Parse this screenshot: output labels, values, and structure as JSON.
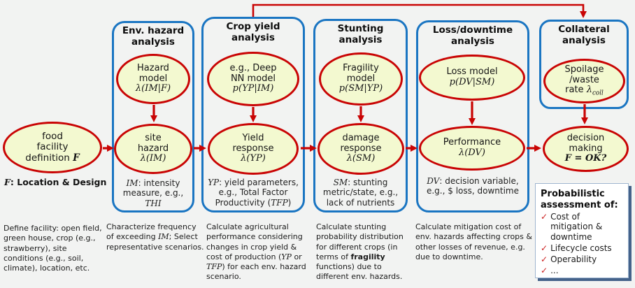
{
  "theme": {
    "background": "#f2f3f2",
    "box_border_blue": "#1a75c2",
    "arrow_red": "#c90404",
    "ellipse_fill": "#f3f9d0",
    "ellipse_border_red": "#c90404",
    "assessment_box_border": "#9fb6d0",
    "assessment_box_shadow": "#44628a",
    "check_red": "#cc2020",
    "text": "#111111"
  },
  "source": {
    "node_lines": [
      [
        {
          "t": "food"
        }
      ],
      [
        {
          "t": "facility"
        }
      ],
      [
        {
          "t": "definition "
        },
        {
          "t": "F",
          "s": "mb"
        }
      ]
    ],
    "f_note": [
      {
        "t": "F",
        "s": "mb"
      },
      {
        "t": ": Location & Design",
        "s": "b"
      }
    ],
    "description": [
      {
        "t": "Define facility: open field, green house, crop (e.g., strawberry), site conditions (e.g., soil, climate), location, etc."
      }
    ]
  },
  "columns": [
    {
      "header_lines": [
        [
          {
            "t": "Env. hazard"
          }
        ],
        [
          {
            "t": "analysis"
          }
        ]
      ],
      "model_lines": [
        [
          {
            "t": "Hazard"
          }
        ],
        [
          {
            "t": "model"
          }
        ],
        [
          {
            "t": "λ(IM|F)",
            "s": "m"
          }
        ]
      ],
      "response_lines": [
        [
          {
            "t": "site"
          }
        ],
        [
          {
            "t": "hazard"
          }
        ],
        [
          {
            "t": "λ(IM)",
            "s": "m"
          }
        ]
      ],
      "note": [
        {
          "t": "IM",
          "s": "m"
        },
        {
          "t": ": intensity measure, e.g., "
        },
        {
          "t": "THI",
          "s": "m"
        }
      ],
      "description": [
        {
          "t": "Characterize frequency of exceeding "
        },
        {
          "t": "IM",
          "s": "m"
        },
        {
          "t": "; Select representative scenarios."
        }
      ]
    },
    {
      "header_lines": [
        [
          {
            "t": "Crop yield"
          }
        ],
        [
          {
            "t": "analysis"
          }
        ]
      ],
      "model_lines": [
        [
          {
            "t": "e.g., Deep"
          }
        ],
        [
          {
            "t": "NN model"
          }
        ],
        [
          {
            "t": "p(YP|IM)",
            "s": "m"
          }
        ]
      ],
      "response_lines": [
        [
          {
            "t": "Yield"
          }
        ],
        [
          {
            "t": "response"
          }
        ],
        [
          {
            "t": "λ(YP)",
            "s": "m"
          }
        ]
      ],
      "note": [
        {
          "t": "YP",
          "s": "m"
        },
        {
          "t": ": yield parameters, e.g., Total Factor Productivity ("
        },
        {
          "t": "TFP",
          "s": "m"
        },
        {
          "t": ")"
        }
      ],
      "description": [
        {
          "t": "Calculate agricultural performance considering changes in crop yield & cost of production ("
        },
        {
          "t": "YP",
          "s": "m"
        },
        {
          "t": " or "
        },
        {
          "t": "TFP",
          "s": "m"
        },
        {
          "t": ") for each env. hazard scenario."
        }
      ]
    },
    {
      "header_lines": [
        [
          {
            "t": "Stunting"
          }
        ],
        [
          {
            "t": "analysis"
          }
        ]
      ],
      "model_lines": [
        [
          {
            "t": "Fragility"
          }
        ],
        [
          {
            "t": "model"
          }
        ],
        [
          {
            "t": "p(SM|YP)",
            "s": "m"
          }
        ]
      ],
      "response_lines": [
        [
          {
            "t": "damage"
          }
        ],
        [
          {
            "t": "response"
          }
        ],
        [
          {
            "t": "λ(SM)",
            "s": "m"
          }
        ]
      ],
      "note": [
        {
          "t": "SM",
          "s": "m"
        },
        {
          "t": ": stunting metric/state, e.g., lack of nutrients"
        }
      ],
      "description": [
        {
          "t": "Calculate stunting probability distribution for different crops (in terms of "
        },
        {
          "t": "fragility",
          "s": "b"
        },
        {
          "t": " functions) due to different env. hazards."
        }
      ]
    },
    {
      "header_lines": [
        [
          {
            "t": "Loss/downtime"
          }
        ],
        [
          {
            "t": "analysis"
          }
        ]
      ],
      "model_lines": [
        [
          {
            "t": "Loss model"
          }
        ],
        [
          {
            "t": "p(DV|SM)",
            "s": "m"
          }
        ]
      ],
      "response_lines": [
        [
          {
            "t": "Performance"
          }
        ],
        [
          {
            "t": "λ(DV)",
            "s": "m"
          }
        ]
      ],
      "note": [
        {
          "t": "DV",
          "s": "m"
        },
        {
          "t": ": decision variable, e.g., $ loss, downtime"
        }
      ],
      "description": [
        {
          "t": "Calculate mitigation cost of env. hazards affecting crops & other losses of revenue, e.g. due to downtime."
        }
      ]
    },
    {
      "header_lines": [
        [
          {
            "t": "Collateral"
          }
        ],
        [
          {
            "t": "analysis"
          }
        ]
      ],
      "model_lines": [
        [
          {
            "t": "Spoilage"
          }
        ],
        [
          {
            "t": "/waste"
          }
        ],
        [
          {
            "t": "rate "
          },
          {
            "t": "λ",
            "s": "m"
          },
          {
            "t": "coll",
            "s": "msub"
          }
        ]
      ]
    }
  ],
  "sink": {
    "node_lines": [
      [
        {
          "t": "decision"
        }
      ],
      [
        {
          "t": "making"
        }
      ],
      [
        {
          "t": "F = OK?",
          "s": "mb"
        }
      ]
    ]
  },
  "assessment": {
    "title": "Probabilistic assessment of:",
    "check_glyph": "✓",
    "items": [
      "Cost of mitigation & downtime",
      "Lifecycle costs",
      "Operability",
      "..."
    ]
  }
}
